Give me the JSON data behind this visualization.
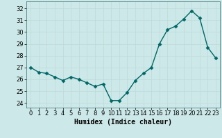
{
  "x": [
    0,
    1,
    2,
    3,
    4,
    5,
    6,
    7,
    8,
    9,
    10,
    11,
    12,
    13,
    14,
    15,
    16,
    17,
    18,
    19,
    20,
    21,
    22,
    23
  ],
  "y": [
    27.0,
    26.6,
    26.5,
    26.2,
    25.9,
    26.2,
    26.0,
    25.7,
    25.4,
    25.6,
    24.2,
    24.2,
    24.9,
    25.9,
    26.5,
    27.0,
    29.0,
    30.2,
    30.5,
    31.1,
    31.8,
    31.2,
    28.7,
    27.8
  ],
  "line_color": "#006666",
  "bg_color": "#cce8e8",
  "grid_color": "#c0d8d8",
  "xlabel": "Humidex (Indice chaleur)",
  "xlim": [
    -0.5,
    23.5
  ],
  "ylim": [
    23.6,
    32.6
  ],
  "yticks": [
    24,
    25,
    26,
    27,
    28,
    29,
    30,
    31,
    32
  ],
  "xticks": [
    0,
    1,
    2,
    3,
    4,
    5,
    6,
    7,
    8,
    9,
    10,
    11,
    12,
    13,
    14,
    15,
    16,
    17,
    18,
    19,
    20,
    21,
    22,
    23
  ],
  "markersize": 2.5,
  "linewidth": 1.0,
  "xlabel_fontsize": 7,
  "tick_fontsize": 6
}
